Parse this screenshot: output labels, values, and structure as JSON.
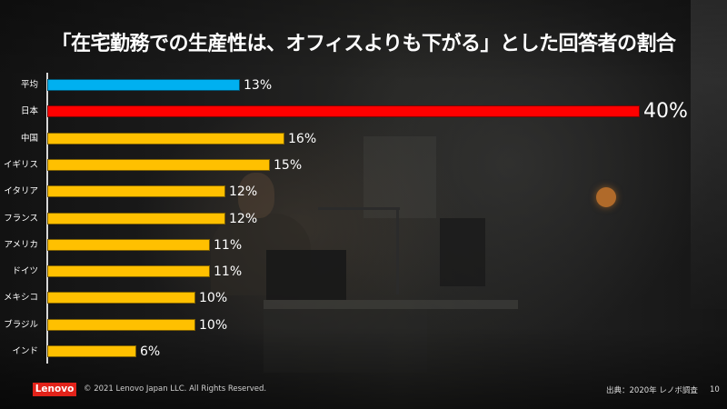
{
  "slide": {
    "title": "「在宅勤務での生産性は、オフィスよりも下がる」とした回答者の割合",
    "footer": {
      "logo": "Lenovo",
      "copyright": "© 2021 Lenovo Japan LLC. All Rights Reserved.",
      "source": "出典：2020年 レノボ調査",
      "page_number": "10"
    },
    "colors": {
      "average": "#00b0f0",
      "japan": "#ff0000",
      "others": "#ffc000",
      "logo_bg": "#e2231a"
    }
  },
  "chart_data": {
    "type": "bar",
    "orientation": "horizontal",
    "title": "「在宅勤務での生産性は、オフィスよりも下がる」とした回答者の割合",
    "xlabel": "",
    "ylabel": "",
    "xlim": [
      0,
      40
    ],
    "grid": false,
    "legend": null,
    "categories": [
      "平均",
      "日本",
      "中国",
      "イギリス",
      "イタリア",
      "フランス",
      "アメリカ",
      "ドイツ",
      "メキシコ",
      "ブラジル",
      "インド"
    ],
    "values": [
      13,
      40,
      16,
      15,
      12,
      12,
      11,
      11,
      10,
      10,
      6
    ],
    "labels": [
      "13%",
      "40%",
      "16%",
      "15%",
      "12%",
      "12%",
      "11%",
      "11%",
      "10%",
      "10%",
      "6%"
    ],
    "bar_colors": [
      "#00b0f0",
      "#ff0000",
      "#ffc000",
      "#ffc000",
      "#ffc000",
      "#ffc000",
      "#ffc000",
      "#ffc000",
      "#ffc000",
      "#ffc000",
      "#ffc000"
    ],
    "unit": "%",
    "source": "出典：2020年 レノボ調査"
  }
}
